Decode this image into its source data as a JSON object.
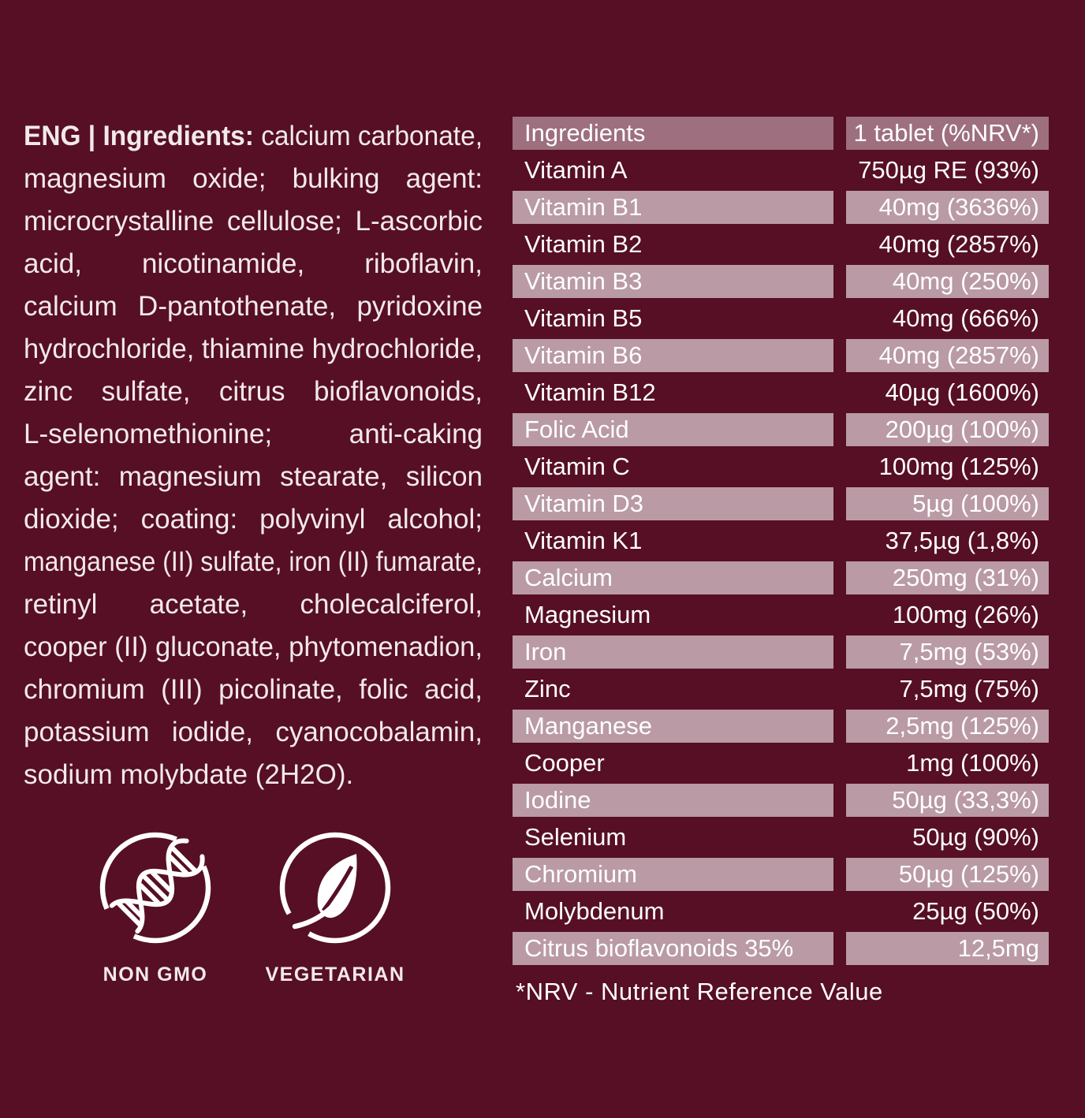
{
  "colors": {
    "background": "#560F24",
    "header_row_bg": "#9D6F7F",
    "shaded_row_bg": "#B99AA5",
    "text": "#F2E9EC",
    "table_text": "#FFFFFF"
  },
  "ingredients_text": {
    "lead": "ENG | Ingredients:",
    "first_line_rest": "calcium carbonate,",
    "lines": [
      "magnesium oxide; bulking agent:",
      "microcrystalline cellulose; L-ascorbic",
      "acid, nicotinamide, riboflavin,",
      "calcium D-pantothenate, pyridoxine",
      "hydrochloride, thiamine hydrochloride,",
      "zinc sulfate, citrus bioflavonoids,",
      "L-selenomethionine; anti-caking",
      "agent: magnesium stearate, silicon",
      "dioxide; coating: polyvinyl alcohol;",
      "manganese (II) sulfate, iron (II) fumarate,",
      "retinyl acetate, cholecalciferol,",
      "cooper (II) gluconate, phytomenadion,",
      "chromium (III) picolinate, folic acid,",
      "potassium iodide, cyanocobalamin,",
      "sodium molybdate (2H2O)."
    ]
  },
  "table": {
    "header": {
      "ingredients": "Ingredients",
      "amount": "1 tablet (%NRV*)"
    },
    "rows": [
      {
        "name": "Vitamin A",
        "value": "750µg RE (93%)",
        "shaded": false
      },
      {
        "name": "Vitamin B1",
        "value": "40mg (3636%)",
        "shaded": true
      },
      {
        "name": "Vitamin B2",
        "value": "40mg (2857%)",
        "shaded": false
      },
      {
        "name": "Vitamin B3",
        "value": "40mg (250%)",
        "shaded": true
      },
      {
        "name": "Vitamin B5",
        "value": "40mg (666%)",
        "shaded": false
      },
      {
        "name": "Vitamin B6",
        "value": "40mg (2857%)",
        "shaded": true
      },
      {
        "name": "Vitamin B12",
        "value": "40µg (1600%)",
        "shaded": false
      },
      {
        "name": "Folic Acid",
        "value": "200µg (100%)",
        "shaded": true
      },
      {
        "name": "Vitamin C",
        "value": "100mg (125%)",
        "shaded": false
      },
      {
        "name": "Vitamin D3",
        "value": "5µg (100%)",
        "shaded": true
      },
      {
        "name": "Vitamin K1",
        "value": "37,5µg (1,8%)",
        "shaded": false
      },
      {
        "name": "Calcium",
        "value": "250mg (31%)",
        "shaded": true
      },
      {
        "name": "Magnesium",
        "value": "100mg (26%)",
        "shaded": false
      },
      {
        "name": "Iron",
        "value": "7,5mg (53%)",
        "shaded": true
      },
      {
        "name": "Zinc",
        "value": "7,5mg (75%)",
        "shaded": false
      },
      {
        "name": "Manganese",
        "value": "2,5mg (125%)",
        "shaded": true
      },
      {
        "name": "Cooper",
        "value": "1mg (100%)",
        "shaded": false
      },
      {
        "name": "Iodine",
        "value": "50µg (33,3%)",
        "shaded": true
      },
      {
        "name": "Selenium",
        "value": "50µg (90%)",
        "shaded": false
      },
      {
        "name": "Chromium",
        "value": "50µg (125%)",
        "shaded": true
      },
      {
        "name": "Molybdenum",
        "value": "25µg (50%)",
        "shaded": false
      },
      {
        "name": "Citrus bioflavonoids 35%",
        "value": "12,5mg",
        "shaded": true
      }
    ],
    "footnote": "*NRV - Nutrient Reference Value"
  },
  "badges": [
    {
      "label": "NON GMO",
      "icon": "non-gmo-dna-icon"
    },
    {
      "label": "VEGETARIAN",
      "icon": "vegetarian-leaf-icon"
    }
  ]
}
